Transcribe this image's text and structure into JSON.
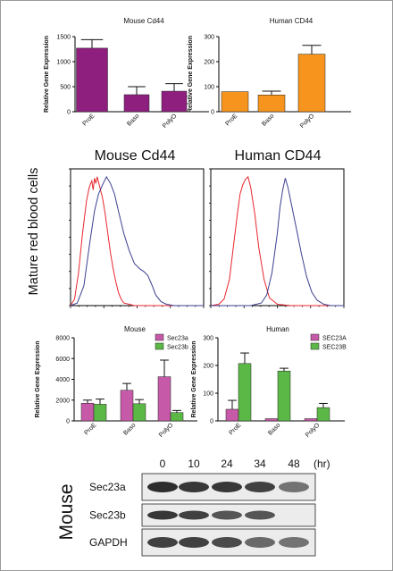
{
  "chart_data": [
    {
      "id": "mouse_cd44_bar",
      "type": "bar",
      "title": "Mouse Cd44",
      "ylabel": "Relative Gene Expression",
      "xlabel": "",
      "ylim": [
        0,
        1500
      ],
      "yticks": [
        0,
        500,
        1000,
        1500
      ],
      "categories": [
        "ProE",
        "Baso",
        "PolyO"
      ],
      "values": [
        1270,
        340,
        410
      ],
      "errors": [
        170,
        160,
        150
      ],
      "color": "#8e1f7f"
    },
    {
      "id": "human_cd44_bar",
      "type": "bar",
      "title": "Human CD44",
      "ylabel": "Relative Gene Expression",
      "xlabel": "",
      "ylim": [
        0,
        300
      ],
      "yticks": [
        0,
        100,
        200,
        300
      ],
      "categories": [
        "ProE",
        "Baso",
        "PolyO"
      ],
      "values": [
        80,
        67,
        230
      ],
      "errors": [
        0,
        15,
        35
      ],
      "color": "#f7941d"
    },
    {
      "id": "flow_panels",
      "type": "line",
      "ylabel": "Mature red blood cells",
      "panels": [
        {
          "title": "Mouse Cd44",
          "series": [
            {
              "color": "#e8262d",
              "x": [
                0.0,
                0.03,
                0.06,
                0.09,
                0.12,
                0.14,
                0.16,
                0.17,
                0.18,
                0.19,
                0.2,
                0.22,
                0.24,
                0.26,
                0.28,
                0.3,
                0.32,
                0.34,
                0.36,
                0.38,
                0.4,
                0.44,
                0.48,
                0.55,
                0.65,
                0.8,
                1.0
              ],
              "y": [
                0.0,
                0.05,
                0.25,
                0.55,
                0.8,
                0.9,
                0.95,
                0.88,
                0.97,
                0.93,
                0.98,
                0.9,
                0.82,
                0.7,
                0.55,
                0.4,
                0.28,
                0.18,
                0.1,
                0.05,
                0.02,
                0.01,
                0.0,
                0.0,
                0.0,
                0.0,
                0.0
              ]
            },
            {
              "color": "#3b3f8f",
              "x": [
                0.0,
                0.05,
                0.1,
                0.14,
                0.18,
                0.21,
                0.24,
                0.27,
                0.3,
                0.33,
                0.36,
                0.4,
                0.44,
                0.48,
                0.52,
                0.55,
                0.58,
                0.61,
                0.64,
                0.68,
                0.72,
                0.78,
                0.85,
                1.0
              ],
              "y": [
                0.0,
                0.02,
                0.15,
                0.45,
                0.72,
                0.85,
                0.92,
                0.98,
                0.93,
                0.85,
                0.72,
                0.55,
                0.42,
                0.32,
                0.28,
                0.26,
                0.23,
                0.16,
                0.08,
                0.03,
                0.01,
                0.0,
                0.0,
                0.0
              ]
            }
          ]
        },
        {
          "title": "Human CD44",
          "series": [
            {
              "color": "#e8262d",
              "x": [
                0.0,
                0.06,
                0.1,
                0.14,
                0.17,
                0.2,
                0.22,
                0.24,
                0.26,
                0.28,
                0.3,
                0.33,
                0.36,
                0.4,
                0.44,
                0.5,
                0.6,
                0.8,
                1.0
              ],
              "y": [
                0.0,
                0.01,
                0.05,
                0.2,
                0.45,
                0.7,
                0.85,
                0.92,
                0.96,
                0.98,
                0.9,
                0.7,
                0.45,
                0.2,
                0.06,
                0.01,
                0.0,
                0.0,
                0.0
              ]
            },
            {
              "color": "#3b3f8f",
              "x": [
                0.0,
                0.3,
                0.38,
                0.42,
                0.46,
                0.5,
                0.52,
                0.54,
                0.56,
                0.58,
                0.6,
                0.62,
                0.65,
                0.68,
                0.72,
                0.76,
                0.8,
                0.85,
                0.9,
                1.0
              ],
              "y": [
                0.0,
                0.0,
                0.02,
                0.08,
                0.25,
                0.55,
                0.75,
                0.88,
                0.97,
                0.9,
                0.8,
                0.7,
                0.55,
                0.4,
                0.22,
                0.1,
                0.04,
                0.01,
                0.0,
                0.0
              ]
            }
          ]
        }
      ]
    },
    {
      "id": "mouse_sec23_bar",
      "type": "bar",
      "title": "Mouse",
      "ylabel": "Relative Gene Expression",
      "xlabel": "",
      "ylim": [
        0,
        8000
      ],
      "yticks": [
        0,
        2000,
        4000,
        6000,
        8000
      ],
      "categories": [
        "ProE",
        "Baso",
        "PolyO"
      ],
      "series": [
        {
          "name": "Sec23a",
          "color": "#c75aa8",
          "values": [
            1700,
            2950,
            4250
          ],
          "errors": [
            300,
            650,
            1600
          ]
        },
        {
          "name": "Sec23b",
          "color": "#5cb846",
          "values": [
            1600,
            1650,
            800
          ],
          "errors": [
            500,
            400,
            200
          ]
        }
      ]
    },
    {
      "id": "human_sec23_bar",
      "type": "bar",
      "title": "Human",
      "ylabel": "Relative Gene Expression",
      "xlabel": "",
      "ylim": [
        0,
        300
      ],
      "yticks": [
        0,
        100,
        200,
        300
      ],
      "categories": [
        "ProE",
        "Baso",
        "PolyO"
      ],
      "series": [
        {
          "name": "SEC23A",
          "color": "#c75aa8",
          "values": [
            42,
            8,
            8
          ],
          "errors": [
            32,
            0,
            0
          ]
        },
        {
          "name": "SEC23B",
          "color": "#5cb846",
          "values": [
            207,
            180,
            48
          ],
          "errors": [
            38,
            10,
            15
          ]
        }
      ]
    },
    {
      "id": "western_blot",
      "type": "table",
      "timepoints": [
        "0",
        "10",
        "24",
        "34",
        "48"
      ],
      "unit": "(hr)",
      "species": "Mouse",
      "rows": [
        {
          "label": "Sec23a",
          "intensity": [
            0.95,
            0.9,
            0.9,
            0.85,
            0.6
          ]
        },
        {
          "label": "Sec23b",
          "intensity": [
            0.9,
            0.85,
            0.75,
            0.75,
            0.0
          ]
        },
        {
          "label": "GAPDH",
          "intensity": [
            0.85,
            0.85,
            0.8,
            0.65,
            0.6
          ]
        }
      ]
    }
  ]
}
